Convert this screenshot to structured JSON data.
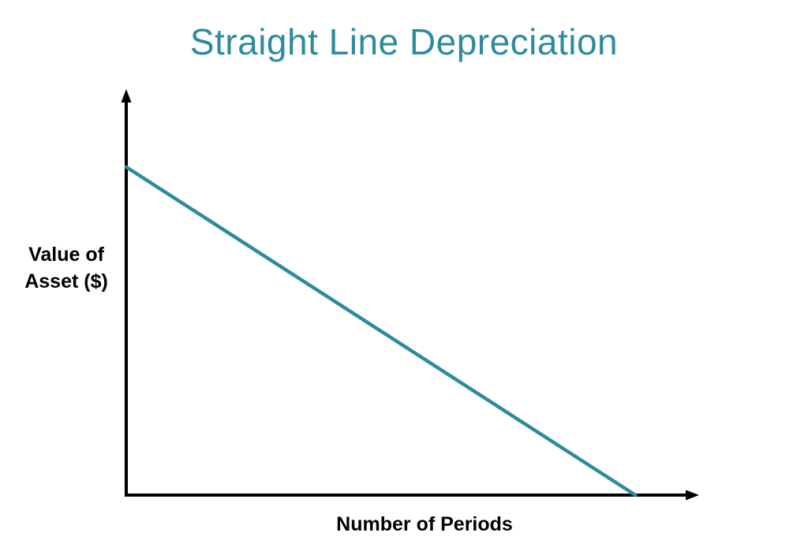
{
  "labels": {
    "title": "Straight Line Depreciation",
    "ylabel_line1": "Value of",
    "ylabel_line2": "Asset ($)",
    "xlabel": "Number of Periods"
  },
  "chart_data": {
    "type": "line",
    "title": "Straight Line Depreciation",
    "xlabel": "Number of Periods",
    "ylabel": "Value of Asset ($)",
    "description": "Conceptual diagram: asset value declines linearly over time; no numeric tick labels are shown on either axis.",
    "series": [
      {
        "name": "Asset value",
        "points_fraction": [
          {
            "x": 0.0,
            "y": 0.816
          },
          {
            "x": 0.89,
            "y": 0.0
          }
        ]
      }
    ],
    "axis_ranges": {
      "x": "unlabeled",
      "y": "unlabeled"
    },
    "ticks": "none",
    "grid": false,
    "legend": "none",
    "arrowheads": true,
    "colors": {
      "line": "#2E8B9E",
      "title": "#2E8B9E",
      "axis": "#000000",
      "labels": "#000000"
    }
  }
}
